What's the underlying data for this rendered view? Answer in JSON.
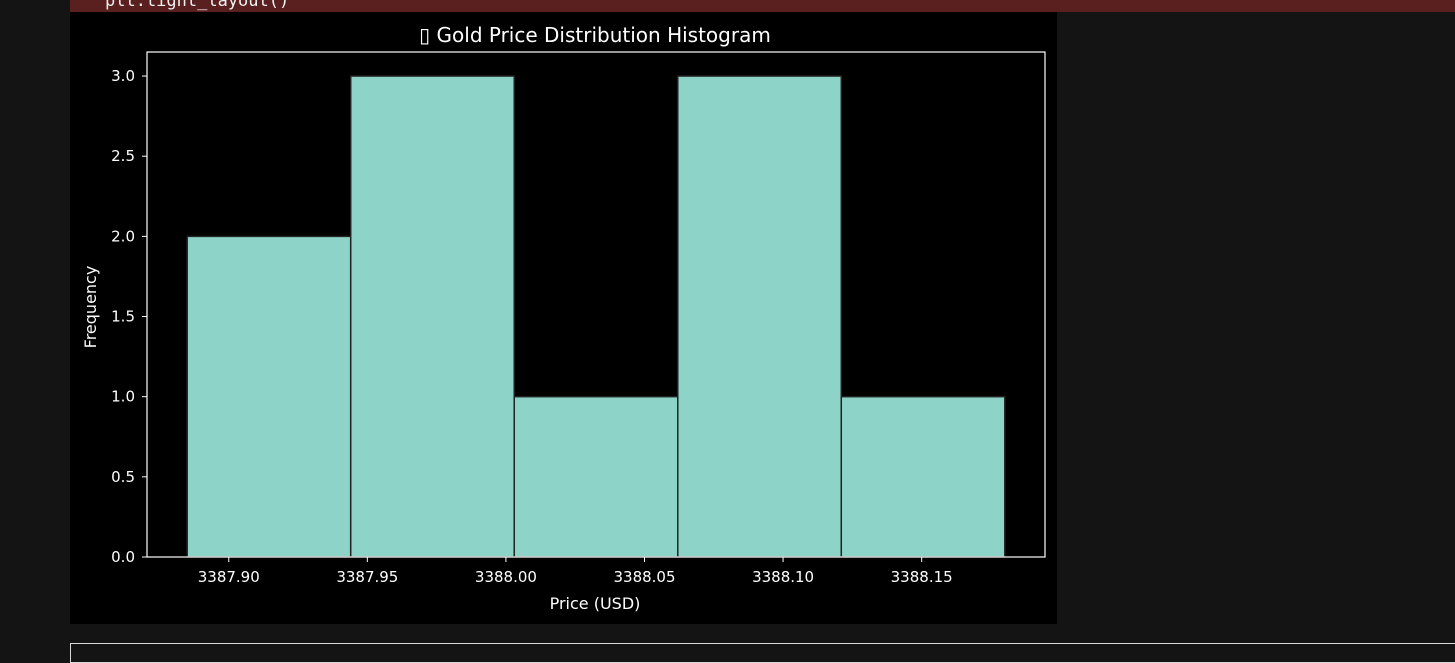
{
  "code_cell": {
    "visible_code": "plt.tight_layout()"
  },
  "colors": {
    "page_background": "#141414",
    "figure_background": "#000000",
    "bar_fill": "#8dd3c7",
    "bar_edge": "#222222",
    "axis_color": "#ffffff",
    "error_strip": "#5a1f1f"
  },
  "chart_data": {
    "type": "bar",
    "title": "▯ Gold Price Distribution Histogram",
    "xlabel": "Price (USD)",
    "ylabel": "Frequency",
    "bins": [
      {
        "start": 3387.885,
        "end": 3387.944,
        "count": 2
      },
      {
        "start": 3387.944,
        "end": 3388.003,
        "count": 3
      },
      {
        "start": 3388.003,
        "end": 3388.062,
        "count": 1
      },
      {
        "start": 3388.062,
        "end": 3388.121,
        "count": 3
      },
      {
        "start": 3388.121,
        "end": 3388.18,
        "count": 1
      }
    ],
    "xlim": [
      3387.8705,
      3388.1945
    ],
    "ylim": [
      0,
      3.15
    ],
    "xticks": [
      3387.9,
      3387.95,
      3388.0,
      3388.05,
      3388.1,
      3388.15
    ],
    "xtick_labels": [
      "3387.90",
      "3387.95",
      "3388.00",
      "3388.05",
      "3388.10",
      "3388.15"
    ],
    "yticks": [
      0,
      0.5,
      1,
      1.5,
      2,
      2.5,
      3
    ],
    "ytick_labels": [
      "0.0",
      "0.5",
      "1.0",
      "1.5",
      "2.0",
      "2.5",
      "3.0"
    ],
    "grid": false,
    "legend": "none"
  }
}
